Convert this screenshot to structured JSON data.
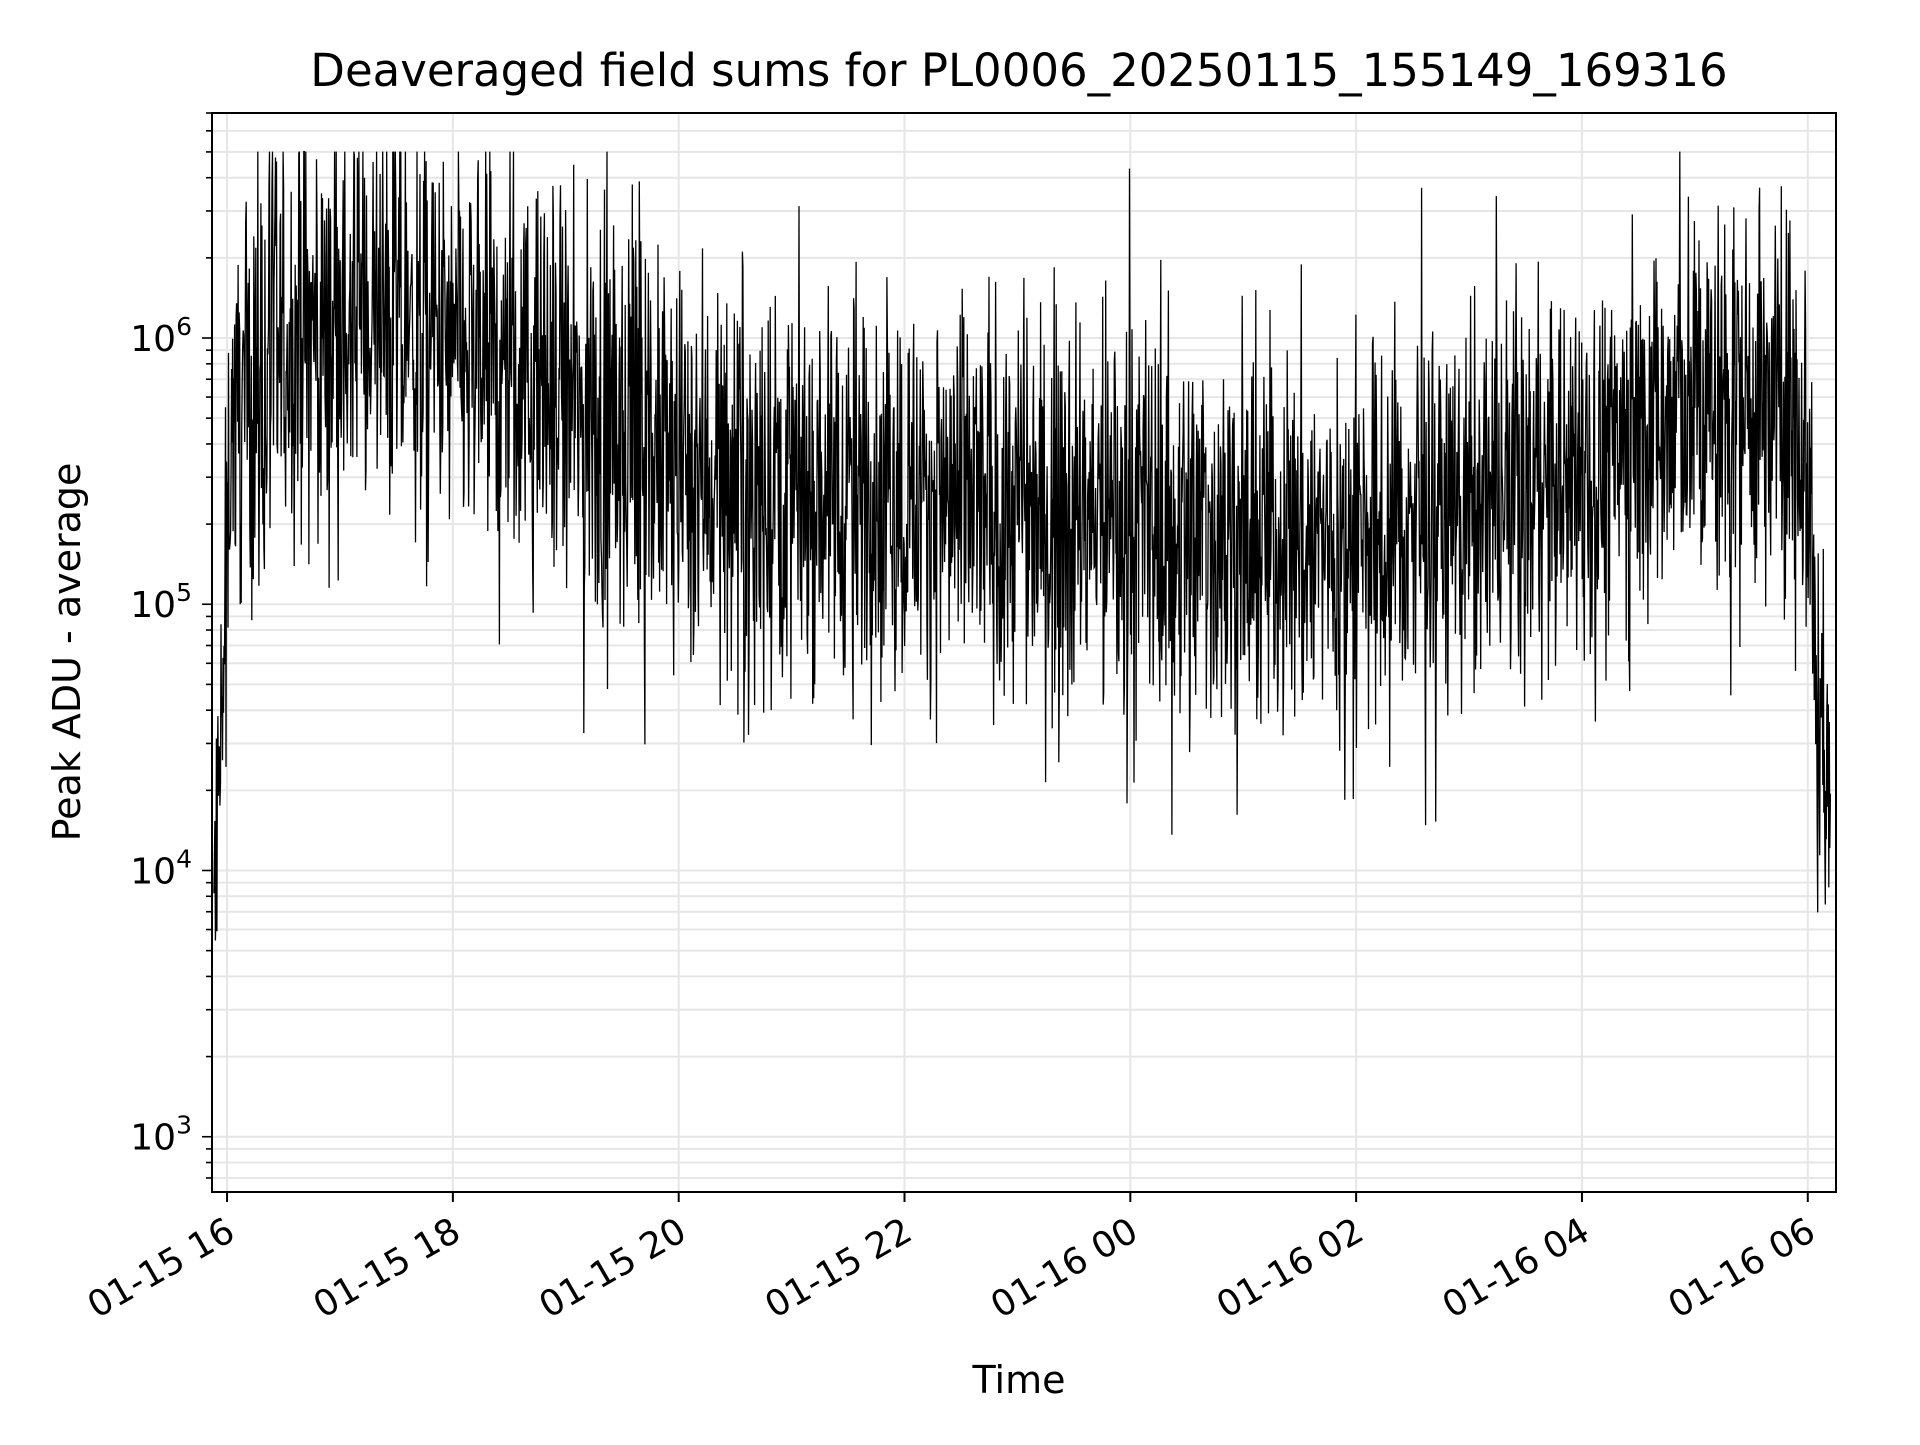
{
  "chart_data": {
    "type": "line",
    "title": "Deaveraged field sums for PL0006_20250115_155149_169316",
    "xlabel": "Time",
    "ylabel": "Peak ADU - average",
    "x_tick_labels": [
      "01-15 16",
      "01-15 18",
      "01-15 20",
      "01-15 22",
      "01-16 00",
      "01-16 02",
      "01-16 04",
      "01-16 06"
    ],
    "x_ticks": [
      "2025-01-15 16:00",
      "2025-01-15 18:00",
      "2025-01-15 20:00",
      "2025-01-15 22:00",
      "2025-01-16 00:00",
      "2025-01-16 02:00",
      "2025-01-16 04:00",
      "2025-01-16 06:00"
    ],
    "xlim": [
      "2025-01-15 15:52",
      "2025-01-16 06:15"
    ],
    "y_scale": "log",
    "y_tick_labels": [
      {
        "base": "10",
        "exp": "3"
      },
      {
        "base": "10",
        "exp": "4"
      },
      {
        "base": "10",
        "exp": "5"
      },
      {
        "base": "10",
        "exp": "6"
      }
    ],
    "y_ticks": [
      1000,
      10000,
      100000,
      1000000
    ],
    "ylim": [
      620,
      7000000
    ],
    "grid": true,
    "line_color": "#000000",
    "grid_color": "#e6e6e6",
    "series": [
      {
        "values_note_free": true,
        "x": [
          "2025-01-15 15:53",
          "2025-01-15 15:55",
          "2025-01-15 15:57",
          "2025-01-15 15:59",
          "2025-01-15 16:00",
          "2025-01-15 16:03",
          "2025-01-15 16:08",
          "2025-01-15 16:15",
          "2025-01-15 16:25",
          "2025-01-15 16:40",
          "2025-01-15 17:00",
          "2025-01-15 17:20",
          "2025-01-15 17:40",
          "2025-01-15 18:00",
          "2025-01-15 18:30",
          "2025-01-15 19:00",
          "2025-01-15 19:30",
          "2025-01-15 20:00",
          "2025-01-15 21:00",
          "2025-01-15 22:00",
          "2025-01-15 23:00",
          "2025-01-16 00:00",
          "2025-01-16 01:00",
          "2025-01-16 02:00",
          "2025-01-16 03:00",
          "2025-01-16 04:00",
          "2025-01-16 04:30",
          "2025-01-16 05:00",
          "2025-01-16 05:30",
          "2025-01-16 05:55",
          "2025-01-16 06:00",
          "2025-01-16 06:02",
          "2025-01-16 06:05",
          "2025-01-16 06:08",
          "2025-01-16 06:12"
        ],
        "y": [
          7000,
          12000,
          30000,
          60000,
          300000,
          500000,
          600000,
          650000,
          800000,
          1000000,
          1100000,
          1100000,
          1000000,
          850000,
          700000,
          550000,
          400000,
          330000,
          290000,
          260000,
          230000,
          200000,
          180000,
          170000,
          220000,
          300000,
          450000,
          550000,
          580000,
          560000,
          400000,
          150000,
          40000,
          28000,
          25000
        ]
      }
    ]
  }
}
